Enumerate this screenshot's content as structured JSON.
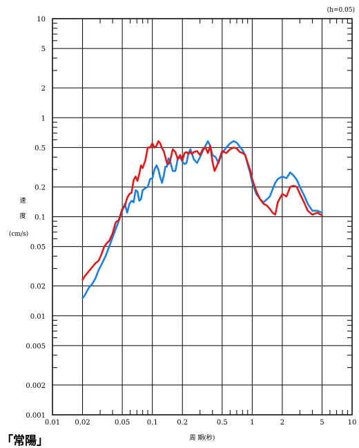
{
  "chart_data": {
    "type": "line",
    "annotation": "(h=0.05)",
    "xlabel": "周 期(秒)",
    "ylabel_lines": [
      "速",
      "度",
      "(cm/s)"
    ],
    "x_scale": "log",
    "y_scale": "log",
    "xlim": [
      0.01,
      10
    ],
    "ylim": [
      0.001,
      10
    ],
    "grid": true,
    "x_ticks": [
      0.01,
      0.02,
      0.05,
      0.1,
      0.2,
      0.5,
      1,
      2,
      5,
      10
    ],
    "x_tick_labels": [
      "0.01",
      "0.02",
      "0.05",
      "0.1",
      "0.2",
      "0.5",
      "1",
      "2",
      "5",
      "10"
    ],
    "y_ticks": [
      0.001,
      0.002,
      0.005,
      0.01,
      0.02,
      0.05,
      0.1,
      0.2,
      0.5,
      1,
      2,
      5,
      10
    ],
    "y_tick_labels": [
      "0.001",
      "0.002",
      "0.005",
      "0.01",
      "0.02",
      "0.05",
      "0.1",
      "0.2",
      "0.5",
      "1",
      "2",
      "5",
      "10"
    ],
    "series": [
      {
        "color": "#1a7fe0",
        "points": [
          [
            0.02,
            0.015
          ],
          [
            0.021,
            0.016
          ],
          [
            0.023,
            0.019
          ],
          [
            0.025,
            0.021
          ],
          [
            0.027,
            0.024
          ],
          [
            0.029,
            0.029
          ],
          [
            0.031,
            0.033
          ],
          [
            0.034,
            0.04
          ],
          [
            0.037,
            0.05
          ],
          [
            0.04,
            0.062
          ],
          [
            0.043,
            0.075
          ],
          [
            0.046,
            0.09
          ],
          [
            0.05,
            0.115
          ],
          [
            0.053,
            0.135
          ],
          [
            0.056,
            0.11
          ],
          [
            0.059,
            0.135
          ],
          [
            0.062,
            0.145
          ],
          [
            0.065,
            0.14
          ],
          [
            0.068,
            0.185
          ],
          [
            0.071,
            0.18
          ],
          [
            0.074,
            0.145
          ],
          [
            0.077,
            0.15
          ],
          [
            0.08,
            0.185
          ],
          [
            0.085,
            0.195
          ],
          [
            0.09,
            0.2
          ],
          [
            0.095,
            0.24
          ],
          [
            0.1,
            0.245
          ],
          [
            0.105,
            0.3
          ],
          [
            0.11,
            0.33
          ],
          [
            0.115,
            0.3
          ],
          [
            0.12,
            0.25
          ],
          [
            0.125,
            0.22
          ],
          [
            0.13,
            0.26
          ],
          [
            0.135,
            0.32
          ],
          [
            0.14,
            0.32
          ],
          [
            0.145,
            0.39
          ],
          [
            0.15,
            0.37
          ],
          [
            0.16,
            0.29
          ],
          [
            0.17,
            0.29
          ],
          [
            0.18,
            0.39
          ],
          [
            0.19,
            0.4
          ],
          [
            0.2,
            0.36
          ],
          [
            0.21,
            0.34
          ],
          [
            0.22,
            0.35
          ],
          [
            0.23,
            0.44
          ],
          [
            0.24,
            0.48
          ],
          [
            0.25,
            0.43
          ],
          [
            0.26,
            0.38
          ],
          [
            0.28,
            0.35
          ],
          [
            0.3,
            0.4
          ],
          [
            0.32,
            0.46
          ],
          [
            0.34,
            0.52
          ],
          [
            0.36,
            0.58
          ],
          [
            0.38,
            0.52
          ],
          [
            0.4,
            0.42
          ],
          [
            0.43,
            0.4
          ],
          [
            0.46,
            0.35
          ],
          [
            0.5,
            0.44
          ],
          [
            0.55,
            0.5
          ],
          [
            0.6,
            0.55
          ],
          [
            0.65,
            0.58
          ],
          [
            0.7,
            0.56
          ],
          [
            0.75,
            0.51
          ],
          [
            0.8,
            0.47
          ],
          [
            0.85,
            0.42
          ],
          [
            0.9,
            0.34
          ],
          [
            0.95,
            0.28
          ],
          [
            1.0,
            0.22
          ],
          [
            1.1,
            0.17
          ],
          [
            1.2,
            0.15
          ],
          [
            1.3,
            0.14
          ],
          [
            1.4,
            0.15
          ],
          [
            1.5,
            0.16
          ],
          [
            1.6,
            0.19
          ],
          [
            1.7,
            0.22
          ],
          [
            1.8,
            0.24
          ],
          [
            2.0,
            0.255
          ],
          [
            2.2,
            0.245
          ],
          [
            2.4,
            0.28
          ],
          [
            2.6,
            0.26
          ],
          [
            2.8,
            0.235
          ],
          [
            3.0,
            0.2
          ],
          [
            3.3,
            0.165
          ],
          [
            3.6,
            0.135
          ],
          [
            4.0,
            0.115
          ],
          [
            4.5,
            0.115
          ],
          [
            5.0,
            0.11
          ]
        ]
      },
      {
        "color": "#e01818",
        "points": [
          [
            0.02,
            0.023
          ],
          [
            0.021,
            0.025
          ],
          [
            0.023,
            0.028
          ],
          [
            0.025,
            0.031
          ],
          [
            0.027,
            0.034
          ],
          [
            0.029,
            0.036
          ],
          [
            0.031,
            0.042
          ],
          [
            0.033,
            0.05
          ],
          [
            0.035,
            0.054
          ],
          [
            0.037,
            0.057
          ],
          [
            0.04,
            0.068
          ],
          [
            0.043,
            0.088
          ],
          [
            0.046,
            0.092
          ],
          [
            0.05,
            0.12
          ],
          [
            0.053,
            0.128
          ],
          [
            0.056,
            0.155
          ],
          [
            0.059,
            0.17
          ],
          [
            0.062,
            0.175
          ],
          [
            0.065,
            0.235
          ],
          [
            0.068,
            0.255
          ],
          [
            0.071,
            0.23
          ],
          [
            0.074,
            0.27
          ],
          [
            0.077,
            0.33
          ],
          [
            0.08,
            0.31
          ],
          [
            0.085,
            0.37
          ],
          [
            0.09,
            0.5
          ],
          [
            0.095,
            0.5
          ],
          [
            0.1,
            0.55
          ],
          [
            0.105,
            0.5
          ],
          [
            0.11,
            0.52
          ],
          [
            0.115,
            0.58
          ],
          [
            0.12,
            0.55
          ],
          [
            0.125,
            0.49
          ],
          [
            0.13,
            0.46
          ],
          [
            0.135,
            0.4
          ],
          [
            0.14,
            0.35
          ],
          [
            0.145,
            0.34
          ],
          [
            0.15,
            0.36
          ],
          [
            0.16,
            0.48
          ],
          [
            0.17,
            0.45
          ],
          [
            0.18,
            0.38
          ],
          [
            0.19,
            0.42
          ],
          [
            0.2,
            0.37
          ],
          [
            0.21,
            0.44
          ],
          [
            0.22,
            0.45
          ],
          [
            0.23,
            0.43
          ],
          [
            0.24,
            0.45
          ],
          [
            0.25,
            0.43
          ],
          [
            0.26,
            0.45
          ],
          [
            0.28,
            0.46
          ],
          [
            0.3,
            0.42
          ],
          [
            0.32,
            0.48
          ],
          [
            0.34,
            0.5
          ],
          [
            0.36,
            0.44
          ],
          [
            0.38,
            0.52
          ],
          [
            0.4,
            0.36
          ],
          [
            0.42,
            0.29
          ],
          [
            0.45,
            0.34
          ],
          [
            0.5,
            0.46
          ],
          [
            0.55,
            0.44
          ],
          [
            0.6,
            0.48
          ],
          [
            0.65,
            0.5
          ],
          [
            0.7,
            0.49
          ],
          [
            0.75,
            0.45
          ],
          [
            0.8,
            0.44
          ],
          [
            0.85,
            0.42
          ],
          [
            0.9,
            0.35
          ],
          [
            0.95,
            0.3
          ],
          [
            1.0,
            0.24
          ],
          [
            1.1,
            0.18
          ],
          [
            1.2,
            0.15
          ],
          [
            1.3,
            0.135
          ],
          [
            1.4,
            0.13
          ],
          [
            1.5,
            0.12
          ],
          [
            1.6,
            0.11
          ],
          [
            1.7,
            0.105
          ],
          [
            1.8,
            0.14
          ],
          [
            2.0,
            0.17
          ],
          [
            2.2,
            0.16
          ],
          [
            2.4,
            0.2
          ],
          [
            2.6,
            0.205
          ],
          [
            2.8,
            0.2
          ],
          [
            3.0,
            0.17
          ],
          [
            3.3,
            0.14
          ],
          [
            3.6,
            0.115
          ],
          [
            4.0,
            0.105
          ],
          [
            4.5,
            0.11
          ],
          [
            5.0,
            0.103
          ]
        ]
      }
    ]
  },
  "corner_label": "「常陽」"
}
